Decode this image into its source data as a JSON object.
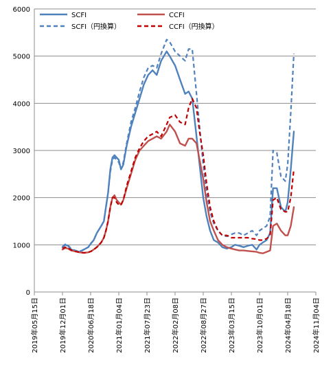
{
  "chart_data": {
    "type": "line",
    "title": "",
    "xlabel": "",
    "ylabel": "",
    "ylim": [
      0,
      6000
    ],
    "yticks": [
      0,
      1000,
      2000,
      3000,
      4000,
      5000,
      6000
    ],
    "xlim": [
      "2019-05-15",
      "2024-11-04"
    ],
    "x_tick_labels": [
      "2019年05月15日",
      "2019年12月01日",
      "2020年06月18日",
      "2021年01月04日",
      "2021年07月23日",
      "2022年02月08日",
      "2022年08月27日",
      "2023年03月15日",
      "2023年10月01日",
      "2024年04月18日",
      "2024年11月04日"
    ],
    "x_tick_dates": [
      "2019-05-15",
      "2019-12-01",
      "2020-06-18",
      "2021-01-04",
      "2021-07-23",
      "2022-02-08",
      "2022-08-27",
      "2023-03-15",
      "2023-10-01",
      "2024-04-18",
      "2024-11-04"
    ],
    "grid": "horizontal",
    "legend_position": "top",
    "series": [
      {
        "name": "SCFI",
        "color": "#4f81bd",
        "style": "solid",
        "points": [
          [
            "2019-12-01",
            950
          ],
          [
            "2019-12-20",
            1000
          ],
          [
            "2020-01-10",
            980
          ],
          [
            "2020-02-01",
            900
          ],
          [
            "2020-03-01",
            870
          ],
          [
            "2020-04-01",
            850
          ],
          [
            "2020-05-01",
            900
          ],
          [
            "2020-06-01",
            950
          ],
          [
            "2020-06-20",
            1030
          ],
          [
            "2020-07-10",
            1100
          ],
          [
            "2020-08-01",
            1250
          ],
          [
            "2020-09-01",
            1400
          ],
          [
            "2020-09-20",
            1500
          ],
          [
            "2020-10-05",
            1800
          ],
          [
            "2020-10-20",
            2100
          ],
          [
            "2020-11-05",
            2600
          ],
          [
            "2020-11-20",
            2850
          ],
          [
            "2020-12-05",
            2900
          ],
          [
            "2020-12-20",
            2850
          ],
          [
            "2021-01-04",
            2800
          ],
          [
            "2021-01-20",
            2600
          ],
          [
            "2021-02-05",
            2700
          ],
          [
            "2021-03-01",
            3100
          ],
          [
            "2021-04-01",
            3500
          ],
          [
            "2021-05-01",
            3800
          ],
          [
            "2021-06-01",
            4100
          ],
          [
            "2021-07-01",
            4400
          ],
          [
            "2021-08-01",
            4600
          ],
          [
            "2021-09-01",
            4700
          ],
          [
            "2021-10-01",
            4600
          ],
          [
            "2021-11-01",
            4900
          ],
          [
            "2021-12-10",
            5100
          ],
          [
            "2022-01-01",
            5000
          ],
          [
            "2022-02-08",
            4800
          ],
          [
            "2022-03-15",
            4500
          ],
          [
            "2022-04-20",
            4200
          ],
          [
            "2022-05-15",
            4250
          ],
          [
            "2022-06-10",
            4100
          ],
          [
            "2022-07-10",
            3300
          ],
          [
            "2022-08-01",
            2700
          ],
          [
            "2022-08-27",
            2000
          ],
          [
            "2022-09-20",
            1600
          ],
          [
            "2022-10-15",
            1300
          ],
          [
            "2022-11-10",
            1100
          ],
          [
            "2022-12-10",
            1050
          ],
          [
            "2023-01-10",
            950
          ],
          [
            "2023-02-10",
            920
          ],
          [
            "2023-03-15",
            950
          ],
          [
            "2023-04-10",
            1000
          ],
          [
            "2023-05-10",
            980
          ],
          [
            "2023-06-10",
            950
          ],
          [
            "2023-07-10",
            980
          ],
          [
            "2023-08-10",
            1000
          ],
          [
            "2023-09-10",
            900
          ],
          [
            "2023-10-01",
            1000
          ],
          [
            "2023-10-25",
            1050
          ],
          [
            "2023-11-20",
            1100
          ],
          [
            "2023-12-15",
            1250
          ],
          [
            "2024-01-05",
            2200
          ],
          [
            "2024-02-01",
            2200
          ],
          [
            "2024-03-01",
            1800
          ],
          [
            "2024-04-01",
            1700
          ],
          [
            "2024-04-18",
            1900
          ],
          [
            "2024-05-10",
            2600
          ],
          [
            "2024-06-01",
            3400
          ]
        ]
      },
      {
        "name": "SCFI（円換算）",
        "color": "#4f81bd",
        "style": "dashed",
        "points": [
          [
            "2019-12-01",
            960
          ],
          [
            "2019-12-20",
            1010
          ],
          [
            "2020-01-10",
            990
          ],
          [
            "2020-02-01",
            910
          ],
          [
            "2020-03-01",
            880
          ],
          [
            "2020-04-01",
            860
          ],
          [
            "2020-05-01",
            900
          ],
          [
            "2020-06-01",
            950
          ],
          [
            "2020-06-20",
            1030
          ],
          [
            "2020-07-10",
            1100
          ],
          [
            "2020-08-01",
            1250
          ],
          [
            "2020-09-01",
            1400
          ],
          [
            "2020-09-20",
            1500
          ],
          [
            "2020-10-05",
            1800
          ],
          [
            "2020-10-20",
            2100
          ],
          [
            "2020-11-05",
            2550
          ],
          [
            "2020-11-20",
            2800
          ],
          [
            "2020-12-05",
            2850
          ],
          [
            "2020-12-20",
            2800
          ],
          [
            "2021-01-04",
            2750
          ],
          [
            "2021-01-20",
            2600
          ],
          [
            "2021-02-05",
            2750
          ],
          [
            "2021-03-01",
            3150
          ],
          [
            "2021-04-01",
            3600
          ],
          [
            "2021-05-01",
            3900
          ],
          [
            "2021-06-01",
            4250
          ],
          [
            "2021-07-01",
            4550
          ],
          [
            "2021-08-01",
            4750
          ],
          [
            "2021-09-01",
            4800
          ],
          [
            "2021-10-01",
            4750
          ],
          [
            "2021-11-01",
            5050
          ],
          [
            "2021-12-10",
            5350
          ],
          [
            "2022-01-01",
            5300
          ],
          [
            "2022-02-08",
            5100
          ],
          [
            "2022-03-15",
            5000
          ],
          [
            "2022-04-20",
            4900
          ],
          [
            "2022-05-15",
            5150
          ],
          [
            "2022-06-10",
            5150
          ],
          [
            "2022-07-10",
            4200
          ],
          [
            "2022-08-01",
            3500
          ],
          [
            "2022-08-27",
            2700
          ],
          [
            "2022-09-20",
            2100
          ],
          [
            "2022-10-15",
            1700
          ],
          [
            "2022-11-10",
            1450
          ],
          [
            "2022-12-10",
            1300
          ],
          [
            "2023-01-10",
            1200
          ],
          [
            "2023-02-10",
            1180
          ],
          [
            "2023-03-15",
            1220
          ],
          [
            "2023-04-10",
            1250
          ],
          [
            "2023-05-10",
            1250
          ],
          [
            "2023-06-10",
            1200
          ],
          [
            "2023-07-10",
            1250
          ],
          [
            "2023-08-10",
            1300
          ],
          [
            "2023-09-10",
            1200
          ],
          [
            "2023-10-01",
            1300
          ],
          [
            "2023-10-25",
            1350
          ],
          [
            "2023-11-20",
            1400
          ],
          [
            "2023-12-15",
            1600
          ],
          [
            "2024-01-05",
            3000
          ],
          [
            "2024-02-01",
            2950
          ],
          [
            "2024-03-01",
            2450
          ],
          [
            "2024-04-01",
            2350
          ],
          [
            "2024-04-18",
            2700
          ],
          [
            "2024-05-10",
            3800
          ],
          [
            "2024-06-01",
            5050
          ]
        ]
      },
      {
        "name": "CCFI",
        "color": "#c0504d",
        "style": "solid",
        "points": [
          [
            "2019-12-01",
            900
          ],
          [
            "2019-12-20",
            930
          ],
          [
            "2020-01-10",
            920
          ],
          [
            "2020-02-01",
            880
          ],
          [
            "2020-03-01",
            860
          ],
          [
            "2020-04-01",
            840
          ],
          [
            "2020-05-01",
            830
          ],
          [
            "2020-06-01",
            840
          ],
          [
            "2020-06-20",
            860
          ],
          [
            "2020-07-10",
            900
          ],
          [
            "2020-08-01",
            950
          ],
          [
            "2020-09-01",
            1050
          ],
          [
            "2020-09-20",
            1150
          ],
          [
            "2020-10-05",
            1300
          ],
          [
            "2020-10-20",
            1500
          ],
          [
            "2020-11-05",
            1800
          ],
          [
            "2020-11-20",
            2000
          ],
          [
            "2020-12-05",
            2050
          ],
          [
            "2020-12-20",
            1950
          ],
          [
            "2021-01-04",
            1900
          ],
          [
            "2021-01-20",
            1850
          ],
          [
            "2021-02-05",
            1950
          ],
          [
            "2021-03-01",
            2200
          ],
          [
            "2021-04-01",
            2500
          ],
          [
            "2021-05-01",
            2800
          ],
          [
            "2021-06-01",
            3000
          ],
          [
            "2021-07-01",
            3100
          ],
          [
            "2021-08-01",
            3200
          ],
          [
            "2021-09-01",
            3250
          ],
          [
            "2021-10-01",
            3300
          ],
          [
            "2021-11-01",
            3250
          ],
          [
            "2021-12-10",
            3400
          ],
          [
            "2022-01-01",
            3550
          ],
          [
            "2022-02-08",
            3400
          ],
          [
            "2022-03-15",
            3150
          ],
          [
            "2022-04-20",
            3100
          ],
          [
            "2022-05-15",
            3250
          ],
          [
            "2022-06-10",
            3250
          ],
          [
            "2022-07-10",
            3150
          ],
          [
            "2022-08-01",
            2800
          ],
          [
            "2022-08-27",
            2400
          ],
          [
            "2022-09-20",
            1900
          ],
          [
            "2022-10-15",
            1500
          ],
          [
            "2022-11-10",
            1300
          ],
          [
            "2022-12-10",
            1100
          ],
          [
            "2023-01-10",
            1000
          ],
          [
            "2023-02-10",
            950
          ],
          [
            "2023-03-15",
            920
          ],
          [
            "2023-04-10",
            900
          ],
          [
            "2023-05-10",
            880
          ],
          [
            "2023-06-10",
            880
          ],
          [
            "2023-07-10",
            870
          ],
          [
            "2023-08-10",
            860
          ],
          [
            "2023-09-10",
            850
          ],
          [
            "2023-10-01",
            830
          ],
          [
            "2023-10-25",
            820
          ],
          [
            "2023-11-20",
            850
          ],
          [
            "2023-12-15",
            880
          ],
          [
            "2024-01-05",
            1400
          ],
          [
            "2024-02-01",
            1450
          ],
          [
            "2024-03-01",
            1300
          ],
          [
            "2024-04-01",
            1200
          ],
          [
            "2024-04-18",
            1200
          ],
          [
            "2024-05-10",
            1400
          ],
          [
            "2024-06-01",
            1800
          ]
        ]
      },
      {
        "name": "CCFI（円換算）",
        "color": "#c00000",
        "style": "dashed",
        "points": [
          [
            "2019-12-01",
            920
          ],
          [
            "2019-12-20",
            950
          ],
          [
            "2020-01-10",
            930
          ],
          [
            "2020-02-01",
            890
          ],
          [
            "2020-03-01",
            860
          ],
          [
            "2020-04-01",
            840
          ],
          [
            "2020-05-01",
            830
          ],
          [
            "2020-06-01",
            840
          ],
          [
            "2020-06-20",
            860
          ],
          [
            "2020-07-10",
            900
          ],
          [
            "2020-08-01",
            950
          ],
          [
            "2020-09-01",
            1050
          ],
          [
            "2020-09-20",
            1150
          ],
          [
            "2020-10-05",
            1300
          ],
          [
            "2020-10-20",
            1500
          ],
          [
            "2020-11-05",
            1800
          ],
          [
            "2020-11-20",
            2000
          ],
          [
            "2020-12-05",
            2000
          ],
          [
            "2020-12-20",
            1900
          ],
          [
            "2021-01-04",
            1850
          ],
          [
            "2021-01-20",
            1850
          ],
          [
            "2021-02-05",
            1950
          ],
          [
            "2021-03-01",
            2250
          ],
          [
            "2021-04-01",
            2550
          ],
          [
            "2021-05-01",
            2850
          ],
          [
            "2021-06-01",
            3050
          ],
          [
            "2021-07-01",
            3200
          ],
          [
            "2021-08-01",
            3300
          ],
          [
            "2021-09-01",
            3350
          ],
          [
            "2021-10-01",
            3400
          ],
          [
            "2021-11-01",
            3300
          ],
          [
            "2021-12-10",
            3550
          ],
          [
            "2022-01-01",
            3700
          ],
          [
            "2022-02-08",
            3750
          ],
          [
            "2022-03-15",
            3600
          ],
          [
            "2022-04-20",
            3550
          ],
          [
            "2022-05-15",
            3900
          ],
          [
            "2022-06-10",
            4100
          ],
          [
            "2022-07-10",
            3900
          ],
          [
            "2022-08-01",
            3400
          ],
          [
            "2022-08-27",
            2900
          ],
          [
            "2022-09-20",
            2300
          ],
          [
            "2022-10-15",
            1800
          ],
          [
            "2022-11-10",
            1500
          ],
          [
            "2022-12-10",
            1300
          ],
          [
            "2023-01-10",
            1200
          ],
          [
            "2023-02-10",
            1200
          ],
          [
            "2023-03-15",
            1150
          ],
          [
            "2023-04-10",
            1150
          ],
          [
            "2023-05-10",
            1150
          ],
          [
            "2023-06-10",
            1150
          ],
          [
            "2023-07-10",
            1150
          ],
          [
            "2023-08-10",
            1130
          ],
          [
            "2023-09-10",
            1120
          ],
          [
            "2023-10-01",
            1100
          ],
          [
            "2023-10-25",
            1100
          ],
          [
            "2023-11-20",
            1130
          ],
          [
            "2023-12-15",
            1200
          ],
          [
            "2024-01-05",
            1950
          ],
          [
            "2024-02-01",
            2000
          ],
          [
            "2024-03-01",
            1750
          ],
          [
            "2024-04-01",
            1700
          ],
          [
            "2024-04-18",
            1700
          ],
          [
            "2024-05-10",
            2000
          ],
          [
            "2024-06-01",
            2600
          ]
        ]
      }
    ]
  }
}
